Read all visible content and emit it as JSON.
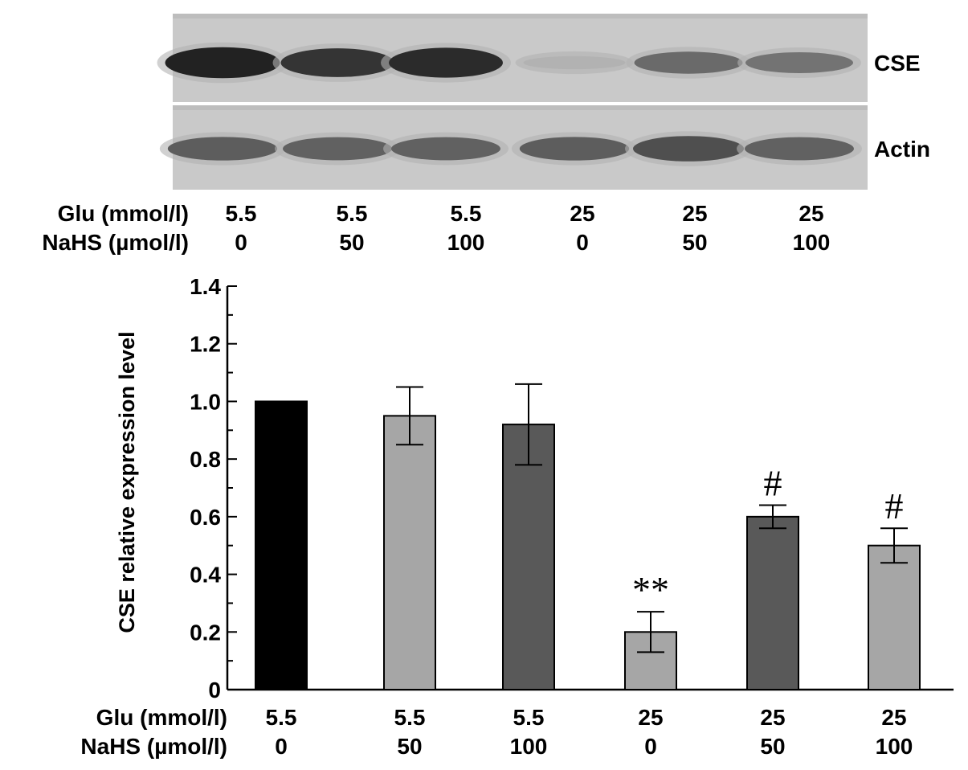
{
  "blot": {
    "rows": [
      {
        "name": "CSE",
        "intensities": [
          0.95,
          0.85,
          0.9,
          0.15,
          0.55,
          0.5
        ]
      },
      {
        "name": "Actin",
        "intensities": [
          0.62,
          0.6,
          0.6,
          0.62,
          0.7,
          0.6
        ]
      }
    ],
    "conditions": {
      "glu_label": "Glu (mmol/l)",
      "nahs_label": "NaHS (µmol/l)",
      "glu": [
        "5.5",
        "5.5",
        "5.5",
        "25",
        "25",
        "25"
      ],
      "nahs": [
        "0",
        "50",
        "100",
        "0",
        "50",
        "100"
      ]
    }
  },
  "chart_data": {
    "type": "bar",
    "categories": [
      "5.5 / 0",
      "5.5 / 50",
      "5.5 / 100",
      "25 / 0",
      "25 / 50",
      "25 / 100"
    ],
    "values": [
      1.0,
      0.95,
      0.92,
      0.2,
      0.6,
      0.5
    ],
    "errors": [
      0,
      0.1,
      0.14,
      0.07,
      0.04,
      0.06
    ],
    "annotations": [
      "",
      "",
      "",
      "**",
      "#",
      "#"
    ],
    "bar_colors": [
      "#000000",
      "#a6a6a6",
      "#595959",
      "#a6a6a6",
      "#595959",
      "#a6a6a6"
    ],
    "ylabel": "CSE  relative expression level",
    "ylim": [
      0,
      1.4
    ],
    "yticks": [
      "0",
      "0.2",
      "0.4",
      "0.6",
      "0.8",
      "1.0",
      "1.2",
      "1.4"
    ],
    "ytick_values": [
      0,
      0.2,
      0.4,
      0.6,
      0.8,
      1.0,
      1.2,
      1.4
    ],
    "grid": false,
    "legend": "none",
    "x_rows": {
      "glu_label": "Glu (mmol/l)",
      "nahs_label": "NaHS (µmol/l)",
      "glu": [
        "5.5",
        "5.5",
        "5.5",
        "25",
        "25",
        "25"
      ],
      "nahs": [
        "0",
        "50",
        "100",
        "0",
        "50",
        "100"
      ]
    }
  }
}
